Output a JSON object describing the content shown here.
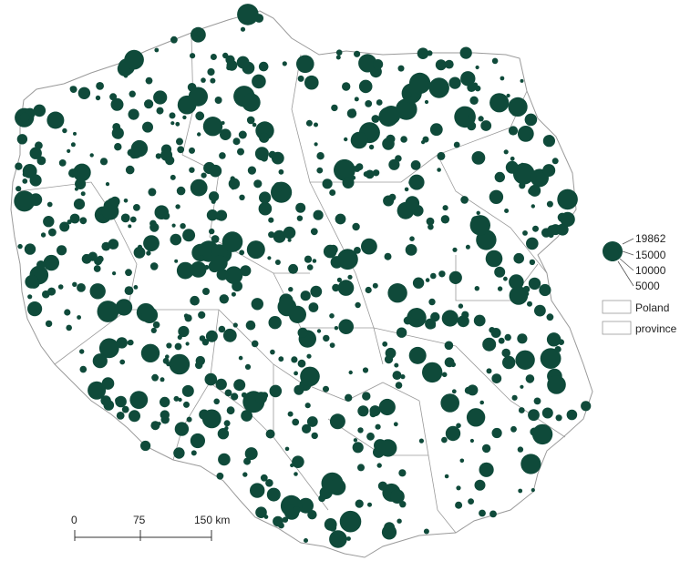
{
  "colors": {
    "symbol": "#0f4a3a",
    "outline": "#9a9a9a",
    "background": "#ffffff"
  },
  "legend": {
    "size_values": [
      "19862",
      "15000",
      "10000",
      "5000"
    ],
    "poland_label": "Poland",
    "province_label": "province"
  },
  "scale_bar": {
    "labels": [
      "0",
      "75",
      "150 km"
    ]
  }
}
